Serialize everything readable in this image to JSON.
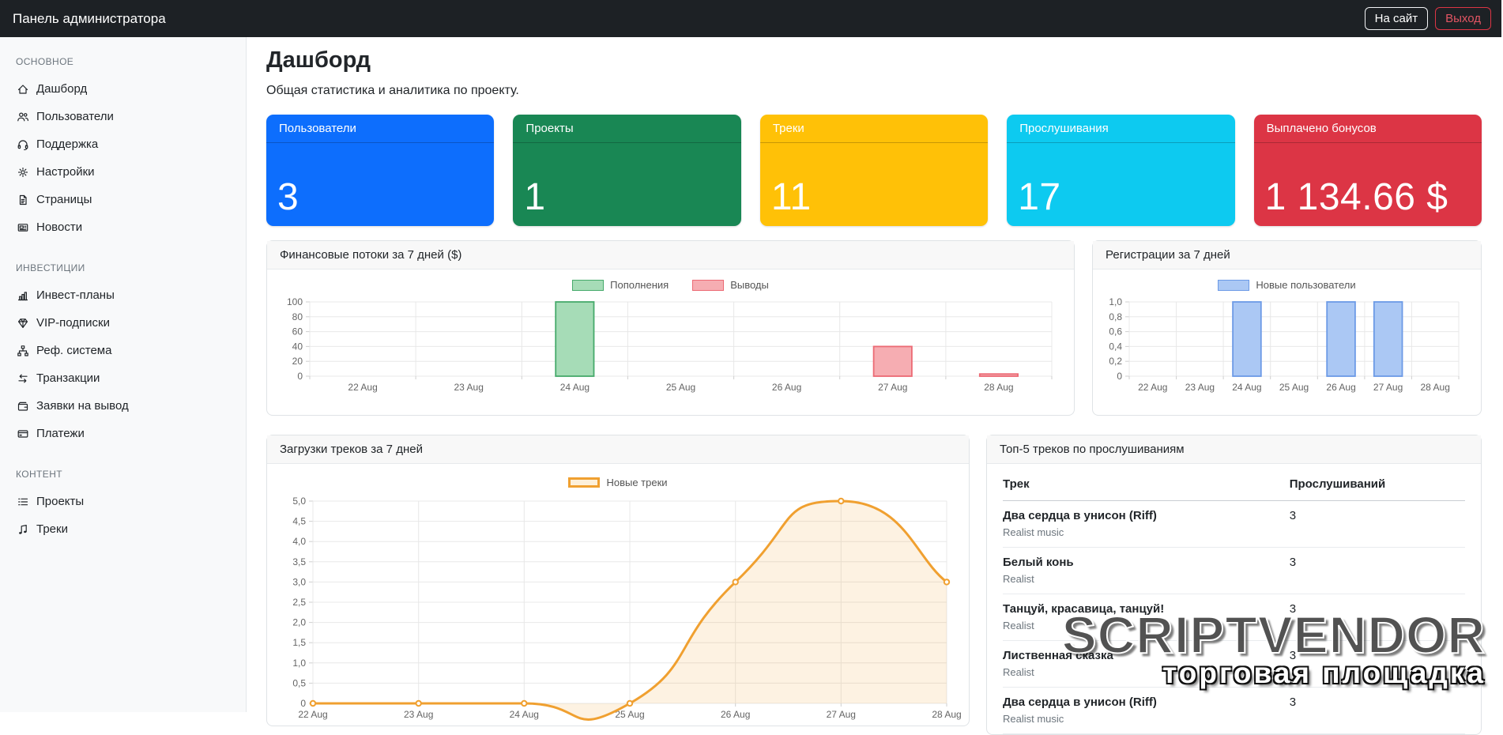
{
  "header": {
    "title": "Панель администратора",
    "site_button": "На сайт",
    "logout_button": "Выход"
  },
  "sidebar": {
    "sections": [
      {
        "label": "ОСНОВНОЕ",
        "items": [
          {
            "key": "dashboard",
            "label": "Дашборд",
            "icon": "house-icon"
          },
          {
            "key": "users",
            "label": "Пользователи",
            "icon": "people-icon"
          },
          {
            "key": "support",
            "label": "Поддержка",
            "icon": "headset-icon"
          },
          {
            "key": "settings",
            "label": "Настройки",
            "icon": "gear-icon"
          },
          {
            "key": "pages",
            "label": "Страницы",
            "icon": "page-icon"
          },
          {
            "key": "news",
            "label": "Новости",
            "icon": "newspaper-icon"
          }
        ]
      },
      {
        "label": "ИНВЕСТИЦИИ",
        "items": [
          {
            "key": "invest-plans",
            "label": "Инвест-планы",
            "icon": "bar-chart-icon"
          },
          {
            "key": "vip-subscriptions",
            "label": "VIP-подписки",
            "icon": "gem-icon"
          },
          {
            "key": "ref-system",
            "label": "Реф. система",
            "icon": "diagram-icon"
          },
          {
            "key": "transactions",
            "label": "Транзакции",
            "icon": "arrows-icon"
          },
          {
            "key": "withdraw-requests",
            "label": "Заявки на вывод",
            "icon": "wallet-icon"
          },
          {
            "key": "payments",
            "label": "Платежи",
            "icon": "credit-card-icon"
          }
        ]
      },
      {
        "label": "КОНТЕНТ",
        "items": [
          {
            "key": "projects",
            "label": "Проекты",
            "icon": "list-icon"
          },
          {
            "key": "tracks",
            "label": "Треки",
            "icon": "music-note-icon"
          }
        ]
      }
    ]
  },
  "page": {
    "title": "Дашборд",
    "subtitle": "Общая статистика и аналитика по проекту."
  },
  "stat_cards": [
    {
      "key": "users",
      "label": "Пользователи",
      "value": "3",
      "color": "#0d6efd"
    },
    {
      "key": "projects",
      "label": "Проекты",
      "value": "1",
      "color": "#198754"
    },
    {
      "key": "tracks",
      "label": "Треки",
      "value": "11",
      "color": "#ffc107"
    },
    {
      "key": "listens",
      "label": "Прослушивания",
      "value": "17",
      "color": "#0dcaf0"
    },
    {
      "key": "bonuses",
      "label": "Выплачено бонусов",
      "value": "1 134.66 $",
      "color": "#dc3545"
    }
  ],
  "chart_data": [
    {
      "id": "finance",
      "type": "bar",
      "title": "Финансовые потоки за 7 дней ($)",
      "categories": [
        "22 Aug",
        "23 Aug",
        "24 Aug",
        "25 Aug",
        "26 Aug",
        "27 Aug",
        "28 Aug"
      ],
      "series": [
        {
          "name": "Пополнения",
          "values": [
            0,
            0,
            100,
            0,
            0,
            0,
            0
          ],
          "fill": "#a6dcb7",
          "border": "#46aa6b"
        },
        {
          "name": "Выводы",
          "values": [
            0,
            0,
            0,
            0,
            0,
            40,
            3
          ],
          "fill": "#f6adb2",
          "border": "#ec6a74"
        }
      ],
      "ylim": [
        0,
        100
      ],
      "yticks": [
        "0",
        "20",
        "40",
        "60",
        "80",
        "100"
      ],
      "grid": true,
      "legend_position": "top"
    },
    {
      "id": "registrations",
      "type": "bar",
      "title": "Регистрации за 7 дней",
      "categories": [
        "22 Aug",
        "23 Aug",
        "24 Aug",
        "25 Aug",
        "26 Aug",
        "27 Aug",
        "28 Aug"
      ],
      "series": [
        {
          "name": "Новые пользователи",
          "values": [
            0,
            0,
            1,
            0,
            1,
            1,
            0
          ],
          "fill": "#abc8f4",
          "border": "#6c9ae6"
        }
      ],
      "ylim": [
        0,
        1
      ],
      "yticks": [
        "0",
        "0,2",
        "0,4",
        "0,6",
        "0,8",
        "1,0"
      ],
      "grid": true,
      "legend_position": "top"
    },
    {
      "id": "uploads",
      "type": "line",
      "title": "Загрузки треков за 7 дней",
      "categories": [
        "22 Aug",
        "23 Aug",
        "24 Aug",
        "25 Aug",
        "26 Aug",
        "27 Aug",
        "28 Aug"
      ],
      "series": [
        {
          "name": "Новые треки",
          "values": [
            0,
            0,
            0,
            0,
            3,
            5,
            3
          ],
          "line": "#f0a030",
          "fill": "rgba(240,160,48,0.14)",
          "swatch_fill": "#fdf0da"
        }
      ],
      "ylim": [
        0,
        5
      ],
      "yticks": [
        "0",
        "0,5",
        "1,0",
        "1,5",
        "2,0",
        "2,5",
        "3,0",
        "3,5",
        "4,0",
        "4,5",
        "5,0"
      ],
      "grid": true,
      "legend_position": "top"
    }
  ],
  "top_tracks": {
    "title": "Топ-5 треков по прослушиваниям",
    "columns": [
      "Трек",
      "Прослушиваний"
    ],
    "rows": [
      {
        "track": "Два сердца в унисон (Riff)",
        "artist": "Realist music",
        "listens": "3"
      },
      {
        "track": "Белый конь",
        "artist": "Realist",
        "listens": "3"
      },
      {
        "track": "Танцуй, красавица, танцуй!",
        "artist": "Realist",
        "listens": "3"
      },
      {
        "track": "Лиственная сказка",
        "artist": "Realist",
        "listens": "3"
      },
      {
        "track": "Два сердца в унисон (Riff)",
        "artist": "Realist music",
        "listens": "3"
      }
    ]
  },
  "watermark": {
    "line1": "SCRIPTVENDOR",
    "line2": "торговая площадка"
  }
}
